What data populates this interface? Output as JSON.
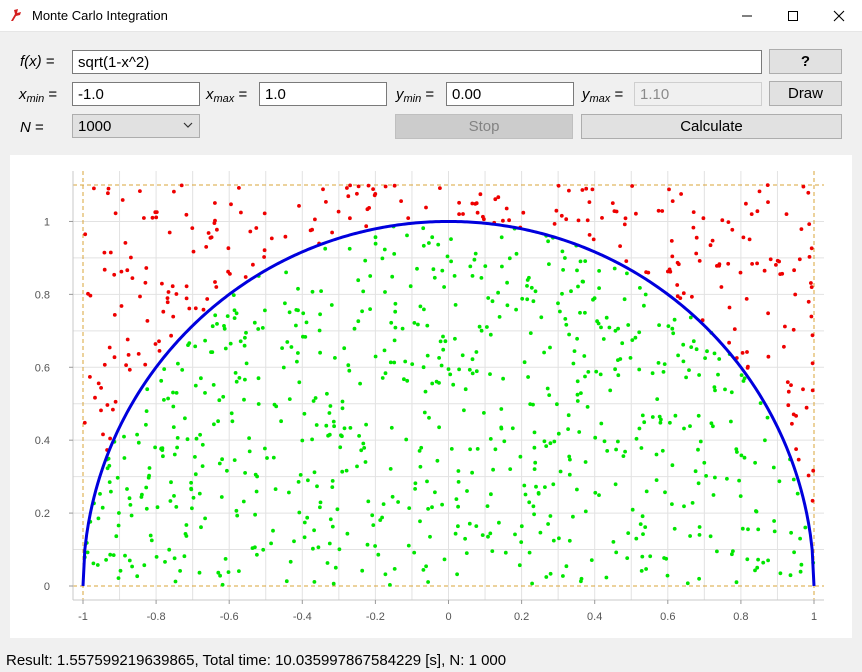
{
  "window": {
    "title": "Monte Carlo Integration"
  },
  "form": {
    "fx_label_main": "f(x)",
    "equals": "=",
    "function": "sqrt(1-x^2)",
    "help_button": "?",
    "xmin_label": "x",
    "xmin_sub": "min",
    "xmin": "-1.0",
    "xmax_label": "x",
    "xmax_sub": "max",
    "xmax": "1.0",
    "ymin_label": "y",
    "ymin_sub": "min",
    "ymin": "0.00",
    "ymax_label": "y",
    "ymax_sub": "max",
    "ymax": "1.10",
    "draw_button": "Draw",
    "n_label": "N",
    "n_value": "1000",
    "stop_button": "Stop",
    "calculate_button": "Calculate"
  },
  "status": {
    "text": "Result: 1.557599219639865, Total time: 10.035997867584229 [s], N: 1 000"
  },
  "colors": {
    "inside": "#00e600",
    "outside": "#ee0000",
    "curve": "#0000dd",
    "bounds": "#d9a43a",
    "grid": "#e2e2e2"
  },
  "chart_data": {
    "type": "scatter",
    "function": "sqrt(1-x^2)",
    "xlim": [
      -1.0,
      1.0
    ],
    "ylim": [
      0.0,
      1.1
    ],
    "xticks": [
      "-1",
      "-0.8",
      "-0.6",
      "-0.4",
      "-0.2",
      "0",
      "0.2",
      "0.4",
      "0.6",
      "0.8",
      "1"
    ],
    "yticks": [
      "0",
      "0.2",
      "0.4",
      "0.6",
      "0.8",
      "1"
    ],
    "n_points": 1000,
    "grid": true,
    "series": [
      {
        "values": "points below curve",
        "color": "#00e600"
      },
      {
        "values": "points above curve",
        "color": "#ee0000"
      }
    ]
  }
}
